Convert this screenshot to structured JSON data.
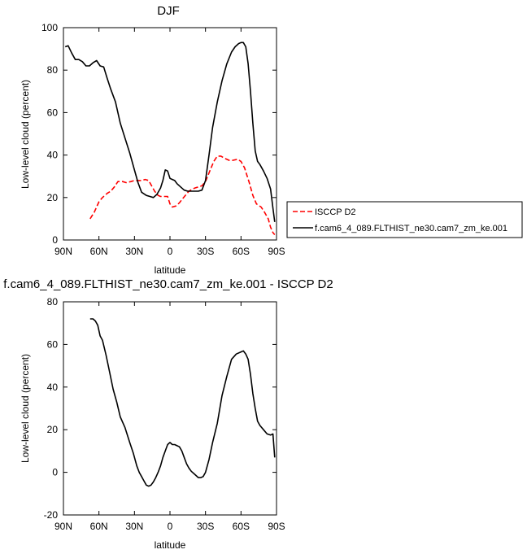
{
  "chart_data": [
    {
      "type": "line",
      "title": "DJF",
      "xlabel": "latitude",
      "ylabel": "Low-level cloud (percent)",
      "xlim": [
        90,
        -90
      ],
      "ylim": [
        0,
        100
      ],
      "xticks": [
        90,
        60,
        30,
        0,
        -30,
        -60,
        -90
      ],
      "xtick_labels": [
        "90N",
        "60N",
        "30N",
        "0",
        "30S",
        "60S",
        "90S"
      ],
      "yticks": [
        0,
        20,
        40,
        60,
        80,
        100
      ],
      "ytick_labels": [
        "0",
        "20",
        "40",
        "60",
        "80",
        "100"
      ],
      "legend_position": "outside-right",
      "series": [
        {
          "name": "ISCCP D2",
          "color": "#ff0000",
          "style": "dashed",
          "x": [
            67.5,
            64,
            60,
            57,
            53,
            50,
            47,
            44,
            40,
            37,
            33,
            30,
            27,
            24,
            21,
            18,
            16,
            13,
            10,
            8,
            5,
            2,
            0,
            -2,
            -5,
            -8,
            -10,
            -13,
            -16,
            -19,
            -21,
            -24,
            -27,
            -30,
            -34,
            -37,
            -40,
            -43,
            -46,
            -50,
            -53,
            -57,
            -60,
            -63,
            -67,
            -70,
            -73,
            -77,
            -80,
            -83,
            -85,
            -87,
            -88.5
          ],
          "y": [
            10,
            13,
            18,
            20,
            22,
            23,
            25,
            27.5,
            27.5,
            27,
            27.5,
            28,
            28,
            28,
            28.5,
            28,
            26,
            23,
            21,
            20.5,
            20.5,
            20.5,
            17,
            15.5,
            16,
            17.5,
            19,
            21,
            23,
            24,
            24.5,
            25,
            25.5,
            27.5,
            33,
            37,
            39.5,
            39.5,
            38.5,
            37.5,
            37.5,
            38,
            37,
            34,
            27,
            21,
            17,
            15.5,
            13,
            10,
            6,
            3.5,
            2.5
          ]
        },
        {
          "name": "f.cam6_4_089.FLTHIST_ne30.cam7_zm_ke.001",
          "color": "#000000",
          "style": "solid",
          "x": [
            88.5,
            86,
            83,
            80,
            77,
            74,
            71,
            68,
            65,
            62,
            59,
            56,
            53,
            50,
            46,
            42,
            38,
            34,
            30,
            27,
            24,
            20,
            17,
            14,
            11,
            8,
            6,
            4,
            2,
            0,
            -2,
            -4,
            -6,
            -9,
            -12,
            -15,
            -18,
            -21,
            -24,
            -27,
            -30,
            -33,
            -36,
            -40,
            -44,
            -48,
            -52,
            -55,
            -58,
            -60,
            -62,
            -64,
            -66,
            -68,
            -70,
            -72,
            -74,
            -76,
            -79,
            -82,
            -85,
            -87,
            -88.5
          ],
          "y": [
            91,
            91.5,
            88,
            85,
            85,
            84,
            82,
            82,
            83.5,
            84.5,
            82,
            81.5,
            76,
            71,
            65,
            55,
            48,
            41,
            33,
            27,
            22.5,
            21,
            20.5,
            20,
            21.5,
            24.5,
            28,
            33,
            32.5,
            29,
            28.5,
            28,
            26.5,
            25,
            23.5,
            23,
            23,
            23,
            23,
            23.5,
            28,
            40,
            53,
            65,
            75,
            83,
            88.5,
            91,
            92.5,
            93,
            93,
            91,
            83,
            70,
            55,
            42,
            37,
            35.5,
            32.5,
            29,
            24,
            15,
            8.5
          ]
        }
      ]
    },
    {
      "type": "line",
      "title": "f.cam6_4_089.FLTHIST_ne30.cam7_zm_ke.001 - ISCCP D2",
      "xlabel": "latitude",
      "ylabel": "Low-level cloud (percent)",
      "xlim": [
        90,
        -90
      ],
      "ylim": [
        -20,
        80
      ],
      "xticks": [
        90,
        60,
        30,
        0,
        -30,
        -60,
        -90
      ],
      "xtick_labels": [
        "90N",
        "60N",
        "30N",
        "0",
        "30S",
        "60S",
        "90S"
      ],
      "yticks": [
        -20,
        0,
        20,
        40,
        60,
        80
      ],
      "ytick_labels": [
        "-20",
        "0",
        "20",
        "40",
        "60",
        "80"
      ],
      "series": [
        {
          "color": "#000000",
          "style": "solid",
          "x": [
            67.5,
            65,
            63,
            61,
            59,
            57,
            54,
            51,
            48,
            45,
            42,
            38,
            34,
            31,
            28,
            26,
            24,
            22,
            20,
            18,
            16,
            14,
            12,
            10,
            8,
            6,
            4,
            2,
            0,
            -2,
            -4,
            -6,
            -8,
            -10,
            -12,
            -14,
            -16,
            -18,
            -20,
            -22,
            -24,
            -26,
            -28,
            -30,
            -33,
            -36,
            -40,
            -44,
            -48,
            -52,
            -56,
            -60,
            -62,
            -64,
            -66,
            -68,
            -70,
            -72,
            -74,
            -76,
            -79,
            -82,
            -85,
            -87,
            -88.5
          ],
          "y": [
            72,
            72,
            71,
            69,
            64,
            62,
            55,
            47,
            39,
            33,
            26,
            21,
            14,
            9,
            3,
            0,
            -2,
            -4,
            -6,
            -6.5,
            -6,
            -4.5,
            -2.5,
            0,
            3,
            7,
            10,
            13,
            14,
            13,
            13,
            12.5,
            12,
            10,
            7,
            4,
            2,
            0.5,
            -0.5,
            -1.5,
            -2.5,
            -2.5,
            -2,
            0,
            6,
            14,
            23,
            36,
            45,
            53,
            55.5,
            56.5,
            57,
            55.5,
            53,
            46,
            37,
            30,
            24,
            22,
            20,
            18,
            17.5,
            18,
            7
          ]
        }
      ]
    }
  ]
}
